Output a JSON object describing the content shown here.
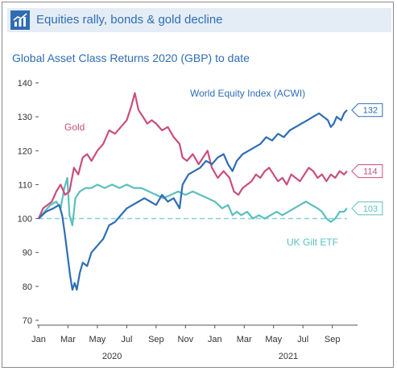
{
  "header": {
    "title": "Equities rally, bonds & gold decline",
    "icon": "bar-chart-icon",
    "accent": "#2f6db3",
    "background": "#e4edf6"
  },
  "chart_data": {
    "type": "line",
    "title": "Global Asset Class Returns 2020 (GBP) to date",
    "xlabel": "",
    "ylabel": "",
    "ylim": [
      70,
      140
    ],
    "yticks": [
      70,
      80,
      90,
      100,
      110,
      120,
      130,
      140
    ],
    "x_tick_labels": [
      "Jan",
      "Mar",
      "May",
      "Jul",
      "Sep",
      "Nov",
      "Jan",
      "Mar",
      "May",
      "Jul",
      "Sep"
    ],
    "year_labels": [
      "2020",
      "2021"
    ],
    "x_range_months": [
      0,
      21.5
    ],
    "baseline": 100,
    "series": [
      {
        "name": "World Equity Index (ACWI)",
        "color": "#2f6db3",
        "end_label": "132",
        "points": [
          [
            0,
            100
          ],
          [
            0.5,
            102
          ],
          [
            1,
            103
          ],
          [
            1.4,
            104
          ],
          [
            1.6,
            101
          ],
          [
            1.8,
            95
          ],
          [
            2,
            88
          ],
          [
            2.15,
            83
          ],
          [
            2.3,
            79
          ],
          [
            2.45,
            81
          ],
          [
            2.6,
            79
          ],
          [
            2.8,
            84
          ],
          [
            3,
            87
          ],
          [
            3.3,
            86
          ],
          [
            3.6,
            90
          ],
          [
            4,
            92
          ],
          [
            4.4,
            94
          ],
          [
            4.8,
            98
          ],
          [
            5.2,
            99
          ],
          [
            5.6,
            101
          ],
          [
            6,
            103
          ],
          [
            6.4,
            104
          ],
          [
            6.8,
            105
          ],
          [
            7.2,
            106
          ],
          [
            7.6,
            105
          ],
          [
            8,
            104
          ],
          [
            8.4,
            107
          ],
          [
            8.8,
            105
          ],
          [
            9.2,
            106
          ],
          [
            9.6,
            103
          ],
          [
            9.8,
            110
          ],
          [
            10.2,
            113
          ],
          [
            10.6,
            114
          ],
          [
            11,
            115
          ],
          [
            11.4,
            117
          ],
          [
            11.8,
            116
          ],
          [
            12.2,
            118
          ],
          [
            12.6,
            119
          ],
          [
            12.9,
            116
          ],
          [
            13.2,
            114
          ],
          [
            13.5,
            117
          ],
          [
            13.9,
            119
          ],
          [
            14.3,
            120
          ],
          [
            14.7,
            121
          ],
          [
            15.1,
            122
          ],
          [
            15.5,
            124
          ],
          [
            15.9,
            123
          ],
          [
            16.3,
            125
          ],
          [
            16.7,
            124
          ],
          [
            17.1,
            126
          ],
          [
            17.5,
            127
          ],
          [
            17.9,
            128
          ],
          [
            18.3,
            129
          ],
          [
            18.7,
            130
          ],
          [
            19.1,
            131
          ],
          [
            19.4,
            130
          ],
          [
            19.7,
            129
          ],
          [
            19.9,
            127
          ],
          [
            20.1,
            128
          ],
          [
            20.3,
            130
          ],
          [
            20.6,
            129
          ],
          [
            20.8,
            131
          ],
          [
            21,
            132
          ]
        ]
      },
      {
        "name": "Gold",
        "color": "#c94f7c",
        "end_label": "114",
        "points": [
          [
            0,
            100
          ],
          [
            0.3,
            103
          ],
          [
            0.6,
            104
          ],
          [
            0.9,
            105
          ],
          [
            1.2,
            108
          ],
          [
            1.5,
            110
          ],
          [
            1.8,
            107
          ],
          [
            2.1,
            108
          ],
          [
            2.4,
            115
          ],
          [
            2.7,
            113
          ],
          [
            3,
            118
          ],
          [
            3.3,
            119
          ],
          [
            3.6,
            117
          ],
          [
            4,
            120
          ],
          [
            4.4,
            122
          ],
          [
            4.8,
            126
          ],
          [
            5.2,
            125
          ],
          [
            5.6,
            127
          ],
          [
            6,
            129
          ],
          [
            6.3,
            133
          ],
          [
            6.55,
            137
          ],
          [
            6.8,
            132
          ],
          [
            7.1,
            130
          ],
          [
            7.4,
            128
          ],
          [
            7.7,
            129
          ],
          [
            8,
            128
          ],
          [
            8.4,
            126
          ],
          [
            8.8,
            127
          ],
          [
            9.2,
            124
          ],
          [
            9.6,
            122
          ],
          [
            9.8,
            118
          ],
          [
            10.1,
            117
          ],
          [
            10.5,
            119
          ],
          [
            10.9,
            116
          ],
          [
            11.2,
            118
          ],
          [
            11.5,
            120
          ],
          [
            11.8,
            115
          ],
          [
            12.2,
            112
          ],
          [
            12.6,
            114
          ],
          [
            13,
            112
          ],
          [
            13.3,
            108
          ],
          [
            13.6,
            107
          ],
          [
            13.9,
            109
          ],
          [
            14.2,
            110
          ],
          [
            14.5,
            111
          ],
          [
            14.8,
            113
          ],
          [
            15.1,
            112
          ],
          [
            15.4,
            114
          ],
          [
            15.7,
            115
          ],
          [
            16,
            113
          ],
          [
            16.3,
            111
          ],
          [
            16.6,
            112
          ],
          [
            16.9,
            110
          ],
          [
            17.2,
            113
          ],
          [
            17.5,
            112
          ],
          [
            17.8,
            111
          ],
          [
            18.1,
            113
          ],
          [
            18.4,
            115
          ],
          [
            18.7,
            114
          ],
          [
            19,
            112
          ],
          [
            19.3,
            113
          ],
          [
            19.6,
            111
          ],
          [
            19.9,
            113
          ],
          [
            20.2,
            112
          ],
          [
            20.5,
            114
          ],
          [
            20.8,
            113
          ],
          [
            21,
            114
          ]
        ]
      },
      {
        "name": "UK Gilt ETF",
        "color": "#5bbfbf",
        "end_label": "103",
        "points": [
          [
            0,
            100
          ],
          [
            0.4,
            102
          ],
          [
            0.8,
            104
          ],
          [
            1.2,
            105
          ],
          [
            1.5,
            103
          ],
          [
            1.75,
            109
          ],
          [
            1.95,
            112
          ],
          [
            2.1,
            101
          ],
          [
            2.3,
            98
          ],
          [
            2.5,
            106
          ],
          [
            2.8,
            108
          ],
          [
            3.2,
            109
          ],
          [
            3.6,
            109
          ],
          [
            4,
            110
          ],
          [
            4.5,
            109
          ],
          [
            5,
            110
          ],
          [
            5.5,
            109
          ],
          [
            6,
            110
          ],
          [
            6.5,
            109
          ],
          [
            7,
            109
          ],
          [
            7.5,
            108
          ],
          [
            8,
            107
          ],
          [
            8.5,
            106
          ],
          [
            9,
            107
          ],
          [
            9.5,
            108
          ],
          [
            10,
            107
          ],
          [
            10.5,
            108
          ],
          [
            11,
            107
          ],
          [
            11.5,
            106
          ],
          [
            12,
            105
          ],
          [
            12.5,
            103
          ],
          [
            12.9,
            104
          ],
          [
            13.2,
            101
          ],
          [
            13.5,
            102
          ],
          [
            13.8,
            101
          ],
          [
            14.2,
            102
          ],
          [
            14.6,
            100
          ],
          [
            15,
            101
          ],
          [
            15.4,
            100
          ],
          [
            15.8,
            101
          ],
          [
            16.2,
            102
          ],
          [
            16.6,
            101
          ],
          [
            17,
            102
          ],
          [
            17.4,
            103
          ],
          [
            17.8,
            104
          ],
          [
            18.2,
            105
          ],
          [
            18.6,
            104
          ],
          [
            19,
            103
          ],
          [
            19.3,
            102
          ],
          [
            19.6,
            100
          ],
          [
            19.9,
            99
          ],
          [
            20.2,
            100
          ],
          [
            20.5,
            102
          ],
          [
            20.8,
            102
          ],
          [
            21,
            103
          ]
        ]
      }
    ],
    "annotations": [
      {
        "text": "World Equity Index (ACWI)",
        "series": "World Equity Index (ACWI)"
      },
      {
        "text": "Gold",
        "series": "Gold"
      },
      {
        "text": "UK Gilt ETF",
        "series": "UK Gilt ETF"
      }
    ],
    "grid": false,
    "legend": "none"
  }
}
